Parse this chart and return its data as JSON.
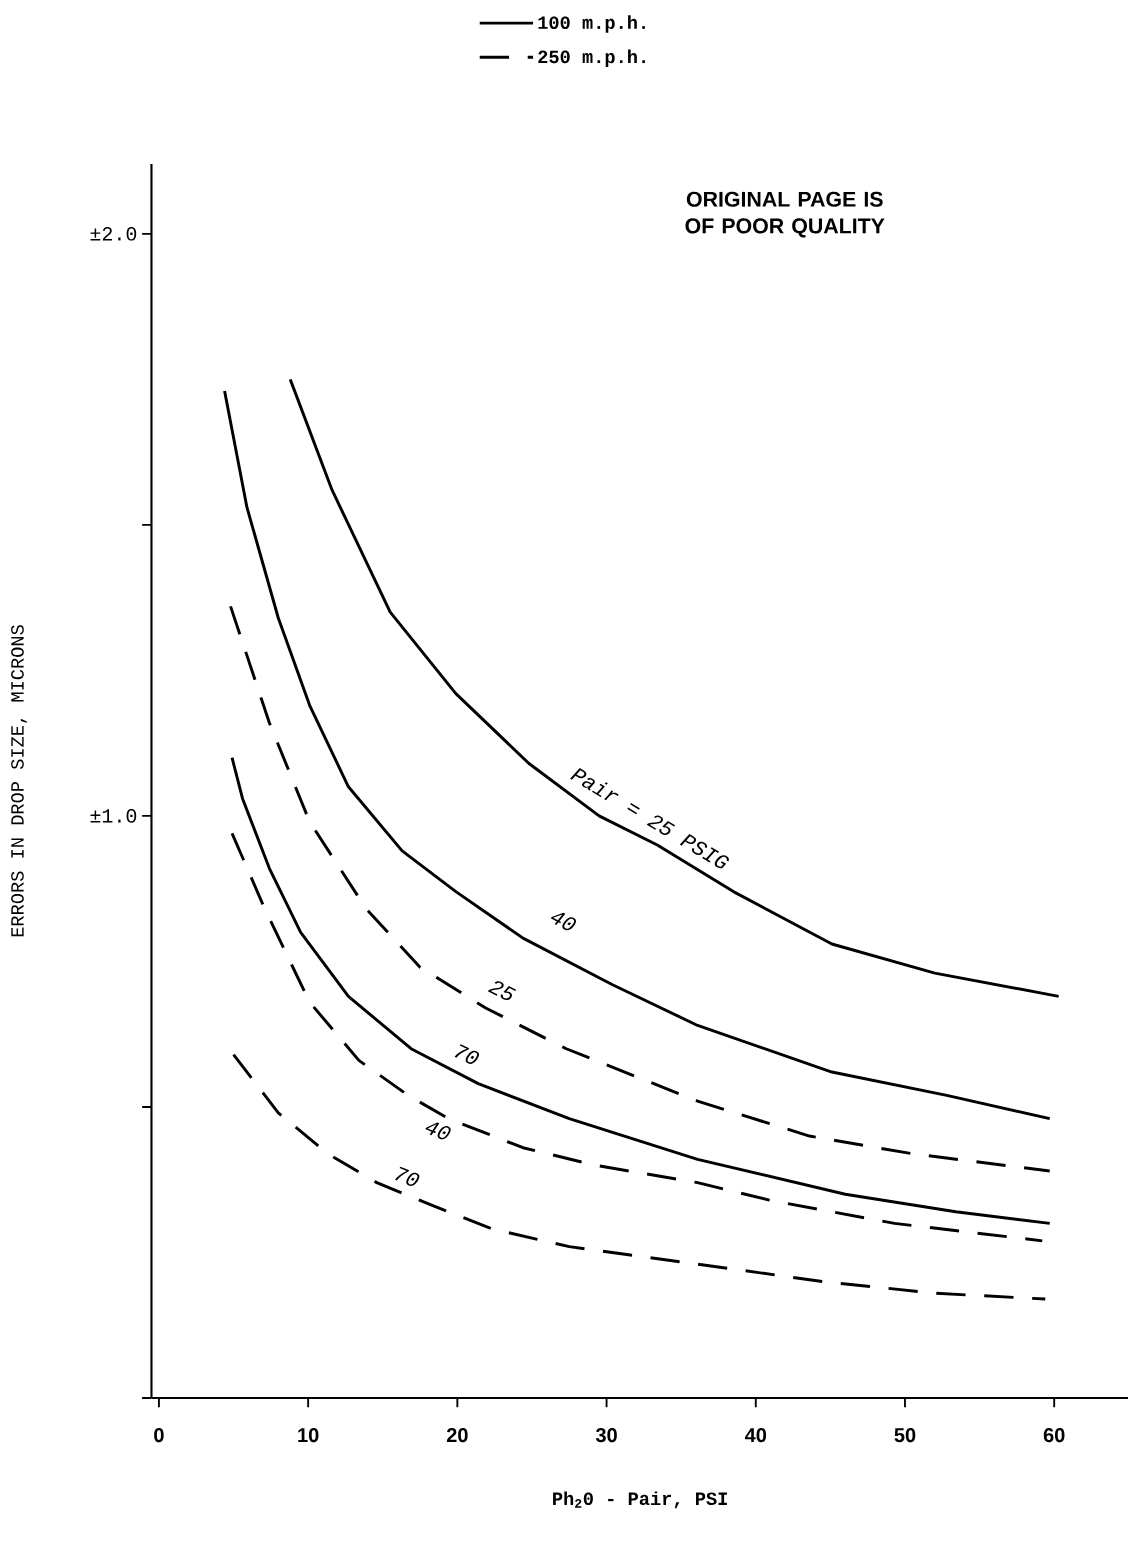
{
  "chart_data": {
    "type": "line",
    "xlabel": "Ph$_{2}$0 - Pair, PSI",
    "ylabel": "ERRORS IN DROP SIZE, MICRONS",
    "xlim": [
      -0.5,
      65
    ],
    "ylim": [
      0,
      2.12
    ],
    "xticks": [
      0,
      10,
      20,
      30,
      40,
      50,
      60
    ],
    "yticks": [
      {
        "value": 0,
        "label": null
      },
      {
        "value": 0.5,
        "label": null
      },
      {
        "value": 1.0,
        "label": "±1.0"
      },
      {
        "value": 1.5,
        "label": null
      },
      {
        "value": 2.0,
        "label": "±2.0"
      }
    ],
    "legend": "top",
    "series": [
      {
        "name": "100 m.p.h.",
        "color": "#000000",
        "line_style": "solid",
        "x": [
          8.8,
          11.6,
          15.5,
          19.9,
          24.8,
          29.5,
          33.4,
          38.5,
          45.1,
          52,
          60.3
        ],
        "values": [
          1.75,
          1.56,
          1.35,
          1.21,
          1.09,
          1.0,
          0.95,
          0.87,
          0.78,
          0.73,
          0.69
        ]
      },
      {
        "color": "#000000",
        "line_style": "solid",
        "x": [
          4.4,
          5.9,
          8.0,
          10.1,
          12.7,
          16.3,
          19.9,
          24.4,
          30.4,
          36.1,
          45.1,
          52.8,
          59.7
        ],
        "values": [
          1.73,
          1.53,
          1.34,
          1.19,
          1.05,
          0.94,
          0.87,
          0.79,
          0.71,
          0.64,
          0.56,
          0.52,
          0.48
        ]
      },
      {
        "color": "#000000",
        "line_style": "solid",
        "x": [
          4.9,
          5.6,
          7.4,
          9.5,
          12.7,
          16.9,
          21.4,
          27.5,
          36.1,
          46,
          53.4,
          59.7
        ],
        "values": [
          1.1,
          1.03,
          0.91,
          0.8,
          0.69,
          0.6,
          0.54,
          0.48,
          0.41,
          0.35,
          0.32,
          0.3
        ]
      },
      {
        "name": "250 m.p.h.",
        "color": "#000000",
        "line_style": "dashed",
        "x": [
          4.8,
          7.4,
          10.1,
          13.9,
          17.5,
          21.9,
          27.3,
          36.1,
          43.6,
          50.4,
          59.7
        ],
        "values": [
          1.36,
          1.16,
          0.99,
          0.84,
          0.74,
          0.67,
          0.6,
          0.51,
          0.45,
          0.42,
          0.39
        ]
      },
      {
        "color": "#000000",
        "line_style": "dashed",
        "x": [
          4.9,
          7.1,
          10.1,
          13.4,
          16.7,
          19.4,
          24.4,
          29.2,
          36.1,
          40.9,
          49.3,
          59.2
        ],
        "values": [
          0.97,
          0.84,
          0.68,
          0.58,
          0.52,
          0.48,
          0.43,
          0.4,
          0.37,
          0.34,
          0.3,
          0.27
        ]
      },
      {
        "color": "#000000",
        "line_style": "dashed",
        "x": [
          5,
          8,
          11.3,
          14.6,
          18.4,
          22.4,
          27.5,
          36.1,
          44.5,
          52,
          59.4
        ],
        "values": [
          0.59,
          0.49,
          0.42,
          0.37,
          0.33,
          0.29,
          0.26,
          0.23,
          0.2,
          0.18,
          0.17
        ]
      }
    ],
    "annotations": [
      {
        "text": "Pair = 25 PSIG",
        "x": 32.2,
        "y": 0.965
      },
      {
        "text": "40",
        "x": 27.1,
        "y": 0.82
      },
      {
        "text": "25",
        "x": 23,
        "y": 0.7
      },
      {
        "text": "70",
        "x": 20.6,
        "y": 0.59
      },
      {
        "text": "40",
        "x": 18.7,
        "y": 0.46
      },
      {
        "text": "70",
        "x": 16.6,
        "y": 0.38
      },
      "ORIGINAL PAGE IS OF POOR QUALITY"
    ]
  }
}
